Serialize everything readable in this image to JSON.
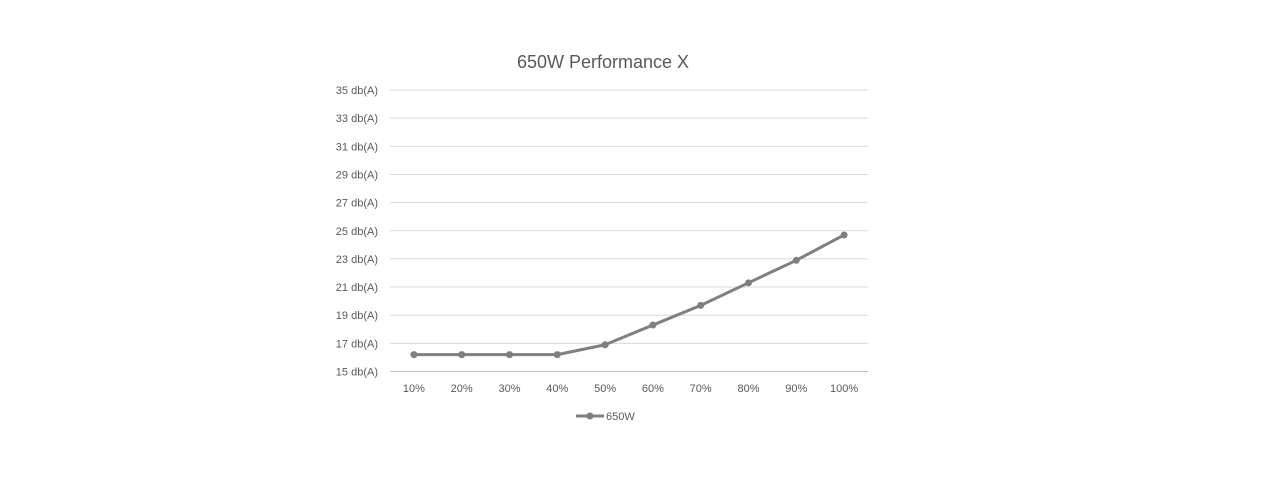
{
  "chart_data": {
    "type": "line",
    "title": "650W Performance X",
    "categories": [
      "10%",
      "20%",
      "30%",
      "40%",
      "50%",
      "60%",
      "70%",
      "80%",
      "90%",
      "100%"
    ],
    "series": [
      {
        "name": "650W",
        "values": [
          16.2,
          16.2,
          16.2,
          16.2,
          16.9,
          18.3,
          19.7,
          21.3,
          22.9,
          24.7
        ],
        "color": "#7f7f7f"
      }
    ],
    "yticks": [
      "15 db(A)",
      "17 db(A)",
      "19 db(A)",
      "21 db(A)",
      "23 db(A)",
      "25 db(A)",
      "27 db(A)",
      "29 db(A)",
      "31 db(A)",
      "33 db(A)",
      "35 db(A)"
    ],
    "ylim": [
      15,
      35
    ],
    "ystep": 2,
    "grid": true,
    "legend": "bottom",
    "colors": {
      "grid": "#d9d9d9",
      "text": "#595959"
    }
  }
}
